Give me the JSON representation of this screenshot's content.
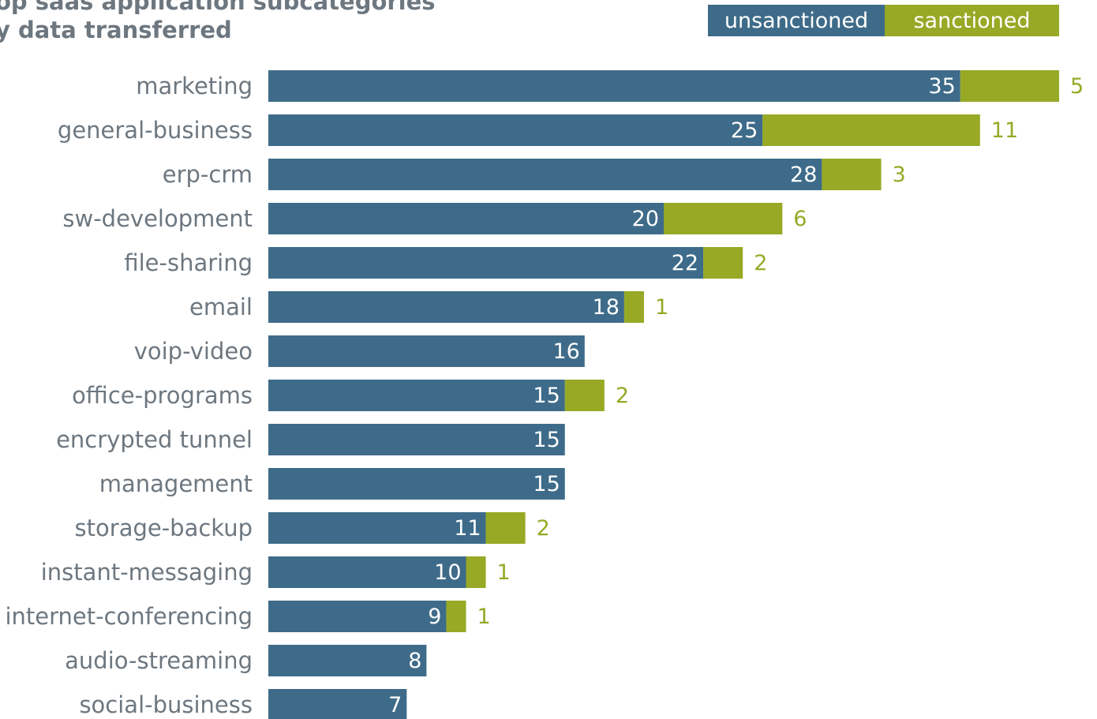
{
  "chart_data": {
    "type": "bar",
    "orientation": "horizontal",
    "stacked": true,
    "title_lines": [
      "op saas application subcategories",
      "y data transferred"
    ],
    "categories": [
      "marketing",
      "general-business",
      "erp-crm",
      "sw-development",
      "file-sharing",
      "email",
      "voip-video",
      "office-programs",
      "encrypted tunnel",
      "management",
      "storage-backup",
      "instant-messaging",
      "internet-conferencing",
      "audio-streaming",
      "social-business"
    ],
    "series": [
      {
        "name": "unsanctioned",
        "color": "#3e6b89",
        "label_color": "#ffffff",
        "values": [
          35,
          25,
          28,
          20,
          22,
          18,
          16,
          15,
          15,
          15,
          11,
          10,
          9,
          8,
          7
        ]
      },
      {
        "name": "sanctioned",
        "color": "#97a925",
        "label_color": "#97a925",
        "values": [
          5,
          11,
          3,
          6,
          2,
          1,
          null,
          2,
          null,
          null,
          2,
          1,
          1,
          null,
          null
        ]
      }
    ],
    "xlim": [
      0,
      40
    ],
    "grid": false,
    "legend_position": "top-right"
  },
  "colors": {
    "category_label": "#6d7780",
    "title": "#6d7780"
  }
}
